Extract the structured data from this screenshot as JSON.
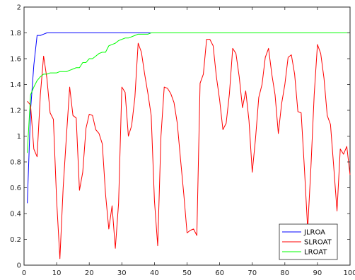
{
  "chart_data": {
    "type": "line",
    "xlim": [
      0,
      100
    ],
    "ylim": [
      0,
      2
    ],
    "xticks": [
      0,
      10,
      20,
      30,
      40,
      50,
      60,
      70,
      80,
      90,
      100
    ],
    "yticks": [
      0,
      0.2,
      0.4,
      0.6,
      0.8,
      1,
      1.2,
      1.4,
      1.6,
      1.8,
      2
    ],
    "xtick_labels": [
      "0",
      "10",
      "20",
      "30",
      "40",
      "50",
      "60",
      "70",
      "80",
      "90",
      "100"
    ],
    "ytick_labels": [
      "0",
      "0.2",
      "0.4",
      "0.6",
      "0.8",
      "1",
      "1.2",
      "1.4",
      "1.6",
      "1.8",
      "2"
    ],
    "grid": false,
    "legend_position": "bottom-right",
    "series": [
      {
        "name": "JLROA",
        "color": "#0000ff",
        "x": [
          1,
          2,
          3,
          4,
          5,
          6,
          7,
          100
        ],
        "y": [
          0.48,
          1.2,
          1.55,
          1.78,
          1.78,
          1.79,
          1.8,
          1.8
        ]
      },
      {
        "name": "SLROAT",
        "color": "#ff0000",
        "x": [
          1,
          2,
          3,
          4,
          5,
          6,
          7,
          8,
          9,
          10,
          11,
          12,
          13,
          14,
          15,
          16,
          17,
          18,
          19,
          20,
          21,
          22,
          23,
          24,
          25,
          26,
          27,
          28,
          29,
          30,
          31,
          32,
          33,
          34,
          35,
          36,
          37,
          38,
          39,
          40,
          41,
          42,
          43,
          44,
          45,
          46,
          47,
          48,
          49,
          50,
          51,
          52,
          53,
          54,
          55,
          56,
          57,
          58,
          59,
          60,
          61,
          62,
          63,
          64,
          65,
          66,
          67,
          68,
          69,
          70,
          71,
          72,
          73,
          74,
          75,
          76,
          77,
          78,
          79,
          80,
          81,
          82,
          83,
          84,
          85,
          86,
          87,
          88,
          89,
          90,
          91,
          92,
          93,
          94,
          95,
          96,
          97,
          98,
          99,
          100
        ],
        "y": [
          1.27,
          1.24,
          0.9,
          0.84,
          1.32,
          1.62,
          1.45,
          1.18,
          1.13,
          0.5,
          0.05,
          0.6,
          1.0,
          1.38,
          1.16,
          1.14,
          0.58,
          0.72,
          1.06,
          1.17,
          1.16,
          1.05,
          1.02,
          0.94,
          0.55,
          0.28,
          0.46,
          0.13,
          0.48,
          1.38,
          1.34,
          1.0,
          1.08,
          1.3,
          1.72,
          1.65,
          1.48,
          1.33,
          1.16,
          0.5,
          0.15,
          1.0,
          1.38,
          1.37,
          1.33,
          1.26,
          1.1,
          0.82,
          0.55,
          0.25,
          0.27,
          0.28,
          0.23,
          1.41,
          1.48,
          1.75,
          1.75,
          1.7,
          1.46,
          1.28,
          1.05,
          1.1,
          1.33,
          1.68,
          1.64,
          1.46,
          1.22,
          1.35,
          1.12,
          0.72,
          0.98,
          1.3,
          1.4,
          1.61,
          1.68,
          1.48,
          1.32,
          1.02,
          1.25,
          1.4,
          1.61,
          1.63,
          1.48,
          1.19,
          1.18,
          0.75,
          0.28,
          0.76,
          1.32,
          1.71,
          1.64,
          1.45,
          1.16,
          1.09,
          0.76,
          0.42,
          0.9,
          0.86,
          0.92,
          0.7
        ]
      },
      {
        "name": "LROAT",
        "color": "#00ff00",
        "x": [
          1,
          2,
          3,
          4,
          5,
          6,
          7,
          8,
          9,
          10,
          11,
          12,
          13,
          14,
          15,
          16,
          17,
          18,
          19,
          20,
          21,
          22,
          23,
          24,
          25,
          26,
          27,
          28,
          29,
          30,
          31,
          32,
          33,
          34,
          35,
          36,
          37,
          38,
          39,
          40,
          41,
          42,
          43,
          44,
          45,
          100
        ],
        "y": [
          0.87,
          1.32,
          1.38,
          1.43,
          1.46,
          1.48,
          1.48,
          1.49,
          1.49,
          1.49,
          1.5,
          1.5,
          1.5,
          1.51,
          1.52,
          1.53,
          1.53,
          1.57,
          1.57,
          1.6,
          1.6,
          1.62,
          1.64,
          1.65,
          1.65,
          1.7,
          1.71,
          1.72,
          1.74,
          1.75,
          1.76,
          1.76,
          1.77,
          1.78,
          1.79,
          1.79,
          1.79,
          1.79,
          1.8,
          1.8,
          1.8,
          1.8,
          1.8,
          1.8,
          1.8,
          1.8
        ]
      }
    ]
  }
}
